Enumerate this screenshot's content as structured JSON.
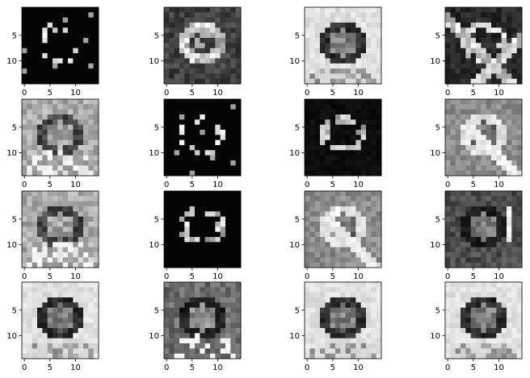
{
  "chart_data": {
    "type": "heatmap",
    "description_grid": "4x4 grid of 15x15 grayscale feature maps (image panels)",
    "rows": 4,
    "cols": 4,
    "image_size": [
      15,
      15
    ],
    "colormap": "gray",
    "xticks": [
      0,
      5,
      10
    ],
    "yticks": [
      5,
      10
    ],
    "xtick_labels": [
      "0",
      "5",
      "10"
    ],
    "ytick_labels": [
      "5",
      "10"
    ],
    "panels": [
      {
        "id": 1,
        "style": "sparse-dark"
      },
      {
        "id": 2,
        "style": "edges-dark"
      },
      {
        "id": 3,
        "style": "bright-face"
      },
      {
        "id": 4,
        "style": "diag-edges"
      },
      {
        "id": 5,
        "style": "mid-face"
      },
      {
        "id": 6,
        "style": "sparse-dark"
      },
      {
        "id": 7,
        "style": "ring-dark"
      },
      {
        "id": 8,
        "style": "mid-gray-edges"
      },
      {
        "id": 9,
        "style": "mid-face"
      },
      {
        "id": 10,
        "style": "arc-dark"
      },
      {
        "id": 11,
        "style": "mid-gray-edges"
      },
      {
        "id": 12,
        "style": "dark-face"
      },
      {
        "id": 13,
        "style": "bright-face"
      },
      {
        "id": 14,
        "style": "mid-dark-face"
      },
      {
        "id": 15,
        "style": "bright-face"
      },
      {
        "id": 16,
        "style": "bright-face"
      }
    ]
  }
}
